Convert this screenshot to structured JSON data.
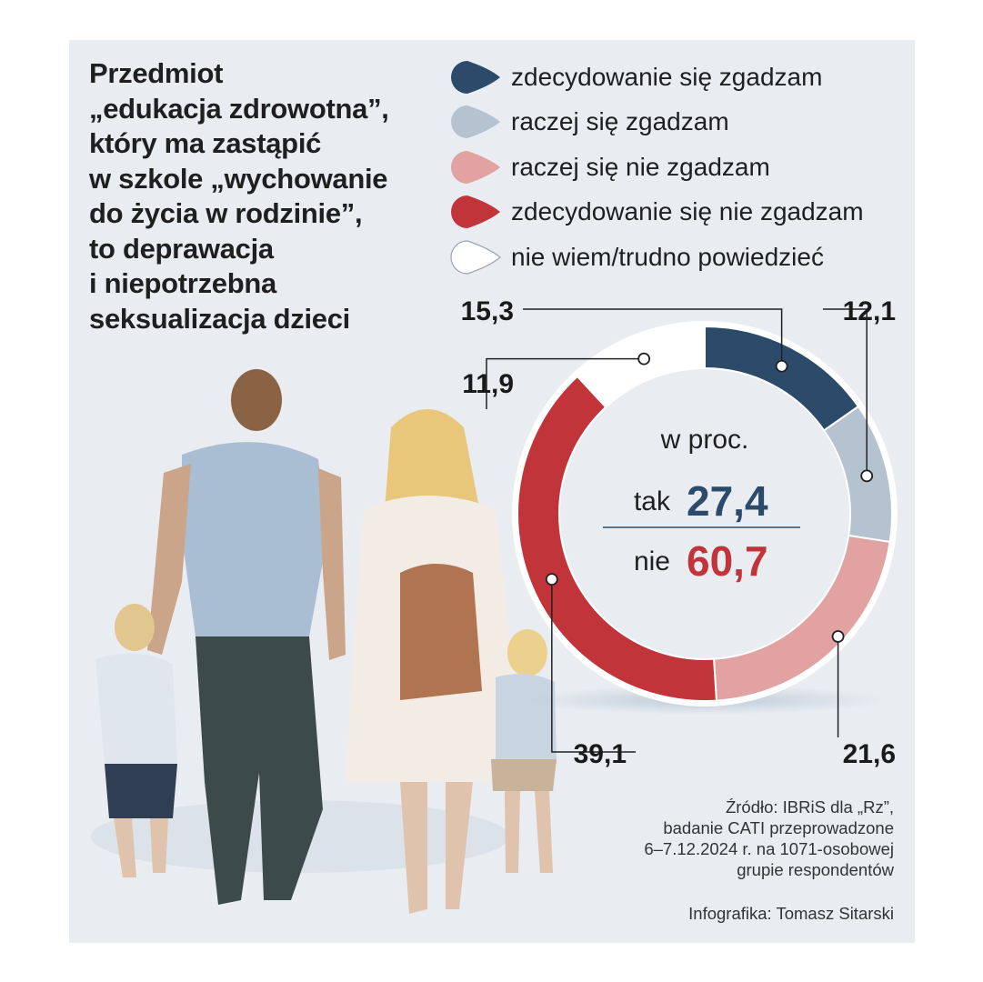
{
  "title_lines": [
    "Przedmiot",
    "„edukacja zdrowotna”,",
    "który ma zastąpić",
    "w szkole „wychowanie",
    "do życia w rodzinie”,",
    "to deprawacja",
    "i niepotrzebna",
    "seksualizacja dzieci"
  ],
  "chart_data": {
    "type": "pie",
    "donut": true,
    "categories": [
      "zdecydowanie się zgadzam",
      "raczej się zgadzam",
      "raczej się nie zgadzam",
      "zdecydowanie się nie zgadzam",
      "nie wiem/trudno powiedzieć"
    ],
    "values": [
      15.3,
      12.1,
      21.6,
      39.1,
      11.9
    ],
    "value_labels": [
      "15,3",
      "12,1",
      "21,6",
      "39,1",
      "11,9"
    ],
    "colors": [
      "#2c4b6a",
      "#b5c3d0",
      "#e3a2a2",
      "#c0343a",
      "#ffffff"
    ],
    "unit_label": "w proc.",
    "summary": [
      {
        "label": "tak",
        "value": "27,4",
        "color": "#2c4b6a"
      },
      {
        "label": "nie",
        "value": "60,7",
        "color": "#c0343a"
      }
    ],
    "legend_position": "top-right"
  },
  "source_lines": [
    "Źródło: IBRiS dla „Rz”,",
    "badanie CATI przeprowadzone",
    "6–7.12.2024 r. na 1071-osobowej",
    "grupie respondentów"
  ],
  "credit": "Infografika: Tomasz Sitarski"
}
